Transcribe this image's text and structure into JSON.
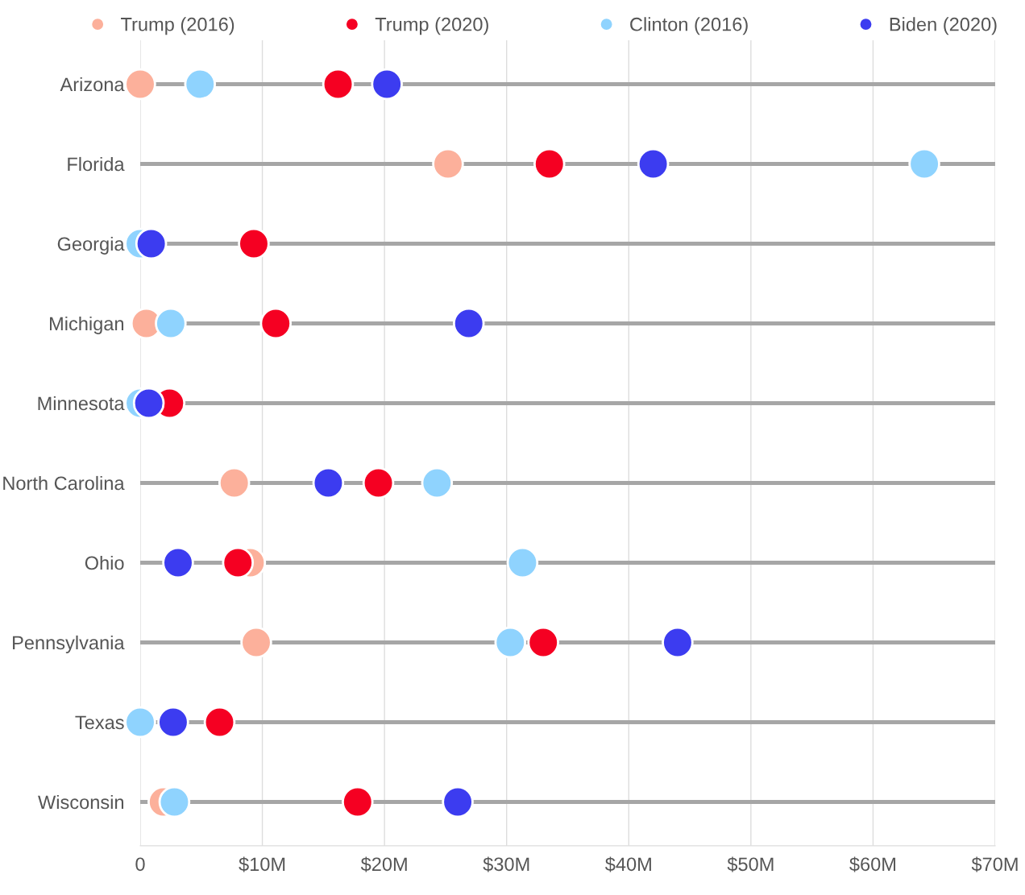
{
  "chart_data": {
    "type": "scatter",
    "orientation": "horizontal",
    "categories": [
      "Arizona",
      "Florida",
      "Georgia",
      "Michigan",
      "Minnesota",
      "North Carolina",
      "Ohio",
      "Pennsylvania",
      "Texas",
      "Wisconsin"
    ],
    "series": [
      {
        "name": "Trump (2016)",
        "color": "#fcb09b",
        "values": [
          0,
          25.2,
          null,
          0.5,
          null,
          7.7,
          9.0,
          9.5,
          null,
          1.9
        ]
      },
      {
        "name": "Trump (2020)",
        "color": "#f50022",
        "values": [
          16.2,
          33.5,
          9.3,
          11.1,
          2.4,
          19.5,
          8.0,
          33.0,
          6.5,
          17.8
        ]
      },
      {
        "name": "Clinton (2016)",
        "color": "#8fd3fe",
        "values": [
          4.9,
          64.2,
          0,
          2.5,
          0,
          24.3,
          31.3,
          30.3,
          0,
          2.8
        ]
      },
      {
        "name": "Biden (2020)",
        "color": "#3c3cf0",
        "values": [
          20.2,
          42.0,
          0.9,
          26.9,
          0.7,
          15.4,
          3.1,
          44.0,
          2.7,
          26.0
        ]
      }
    ],
    "xlim": [
      0,
      70
    ],
    "xticks": [
      0,
      {
        "value": 10,
        "label": "$10M"
      },
      {
        "value": 20,
        "label": "$20M"
      },
      {
        "value": 30,
        "label": "$30M"
      },
      {
        "value": 40,
        "label": "$40M"
      },
      {
        "value": 50,
        "label": "$50M"
      },
      {
        "value": 60,
        "label": "$60M"
      },
      {
        "value": 70,
        "label": "$70M"
      }
    ],
    "grid": true,
    "legend": "top",
    "marker": "circle"
  }
}
